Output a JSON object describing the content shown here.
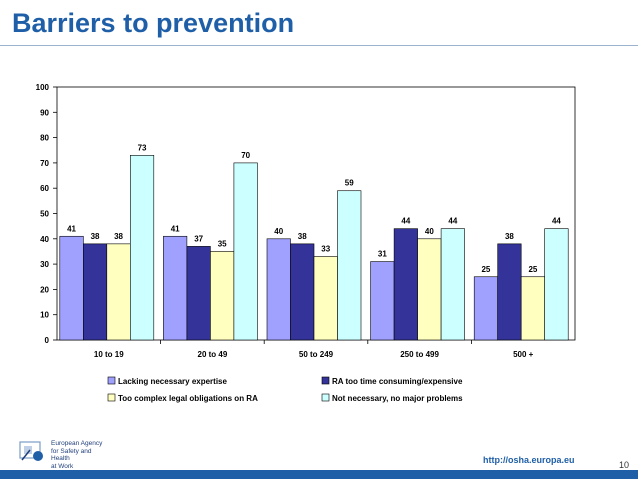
{
  "slide": {
    "title": "Barriers to prevention",
    "url": "http://osha.europa.eu",
    "page_number": "10",
    "agency_lines": [
      "European Agency",
      "for Safety and Health",
      "at Work"
    ]
  },
  "chart_data": {
    "type": "bar",
    "title": "",
    "xlabel": "",
    "ylabel": "",
    "ylim": [
      0,
      100
    ],
    "yticks": [
      0,
      10,
      20,
      30,
      40,
      50,
      60,
      70,
      80,
      90,
      100
    ],
    "categories": [
      "10 to 19",
      "20 to 49",
      "50 to 249",
      "250 to 499",
      "500 +"
    ],
    "series": [
      {
        "name": "Lacking necessary expertise",
        "color": "#a0a0ff",
        "values": [
          41,
          41,
          40,
          31,
          25
        ]
      },
      {
        "name": "RA too time consuming/expensive",
        "color": "#333399",
        "values": [
          38,
          37,
          38,
          44,
          38
        ]
      },
      {
        "name": "Too complex legal obligations on RA",
        "color": "#ffffc0",
        "values": [
          38,
          35,
          33,
          40,
          25
        ]
      },
      {
        "name": "Not necessary, no major problems",
        "color": "#ccffff",
        "values": [
          73,
          70,
          59,
          44,
          44
        ]
      }
    ],
    "legend_position": "bottom"
  }
}
